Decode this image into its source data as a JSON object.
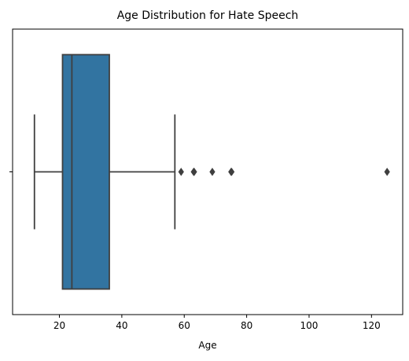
{
  "chart_data": {
    "type": "boxplot",
    "title": "Age Distribution for Hate Speech",
    "xlabel": "Age",
    "ylabel": "",
    "orientation": "horizontal",
    "xlim": [
      5,
      130
    ],
    "xticks": [
      20,
      40,
      60,
      80,
      100,
      120
    ],
    "box": {
      "whisker_low": 12,
      "q1": 21,
      "median": 24,
      "q3": 36,
      "whisker_high": 57
    },
    "outliers": [
      59,
      63,
      63.2,
      69,
      75,
      75.2,
      125
    ],
    "grid": false,
    "legend": "none",
    "colors": {
      "box_fill": "#3274a1",
      "line": "#3f3f3f",
      "outlier": "#3f3f3f",
      "axes": "#000000"
    }
  }
}
